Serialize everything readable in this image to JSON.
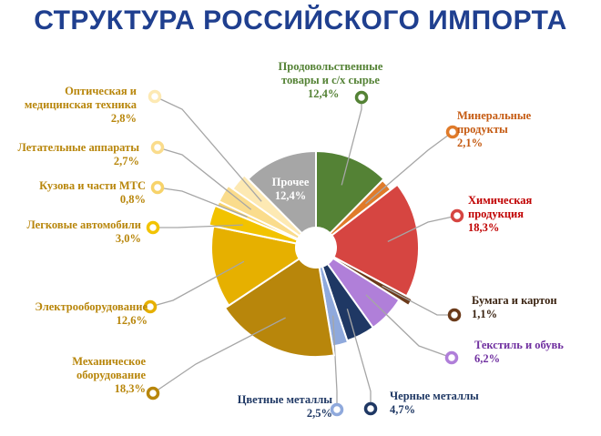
{
  "title": "СТРУКТУРА РОССИЙСКОГО ИМПОРТА",
  "chart_data": {
    "type": "pie",
    "title": "СТРУКТУРА РОССИЙСКОГО ИМПОРТА",
    "slices": [
      {
        "label": [
          "Продовольственные",
          "товары  и с/х сырье"
        ],
        "value": 12.4,
        "value_text": "12,4%",
        "color": "#548235",
        "text_color": "#548235"
      },
      {
        "label": [
          "Минеральные",
          "продукты"
        ],
        "value": 2.1,
        "value_text": "2,1%",
        "color": "#e07b2a",
        "text_color": "#c55a11"
      },
      {
        "label": [
          "Химическая",
          "продукция"
        ],
        "value": 18.3,
        "value_text": "18,3%",
        "color": "#d64541",
        "text_color": "#c00000"
      },
      {
        "label": [
          "Бумага и картон"
        ],
        "value": 1.1,
        "value_text": "1,1%",
        "color": "#6b3a1a",
        "text_color": "#3b2412"
      },
      {
        "label": [
          "Текстиль и обувь"
        ],
        "value": 6.2,
        "value_text": "6,2%",
        "color": "#b07fd9",
        "text_color": "#7030a0"
      },
      {
        "label": [
          "Черные металлы"
        ],
        "value": 4.7,
        "value_text": "4,7%",
        "color": "#1f3864",
        "text_color": "#1f3864"
      },
      {
        "label": [
          "Цветные металлы"
        ],
        "value": 2.5,
        "value_text": "2,5%",
        "color": "#8fa9dc",
        "text_color": "#1f3864"
      },
      {
        "label": [
          "Механическое",
          "оборудование"
        ],
        "value": 18.3,
        "value_text": "18,3%",
        "color": "#b8860b",
        "text_color": "#b8860b"
      },
      {
        "label": [
          "Электрооборудование"
        ],
        "value": 12.6,
        "value_text": "12,6%",
        "color": "#e6b000",
        "text_color": "#b8860b"
      },
      {
        "label": [
          "Легковые автомобили"
        ],
        "value": 3.0,
        "value_text": "3,0%",
        "color": "#f2c300",
        "text_color": "#b8860b"
      },
      {
        "label": [
          "Кузова и части МТС"
        ],
        "value": 0.8,
        "value_text": "0,8%",
        "color": "#f7d36a",
        "text_color": "#b8860b"
      },
      {
        "label": [
          "Летательные  аппараты"
        ],
        "value": 2.7,
        "value_text": "2,7%",
        "color": "#fadc8c",
        "text_color": "#b8860b"
      },
      {
        "label": [
          "Оптическая и",
          "медицинская техника"
        ],
        "value": 2.8,
        "value_text": "2,8%",
        "color": "#fde9b3",
        "text_color": "#b8860b"
      },
      {
        "label": [
          "Прочее"
        ],
        "value": 12.4,
        "value_text": "12,4%",
        "color": "#a6a6a6",
        "text_color": "#ffffff"
      }
    ]
  }
}
